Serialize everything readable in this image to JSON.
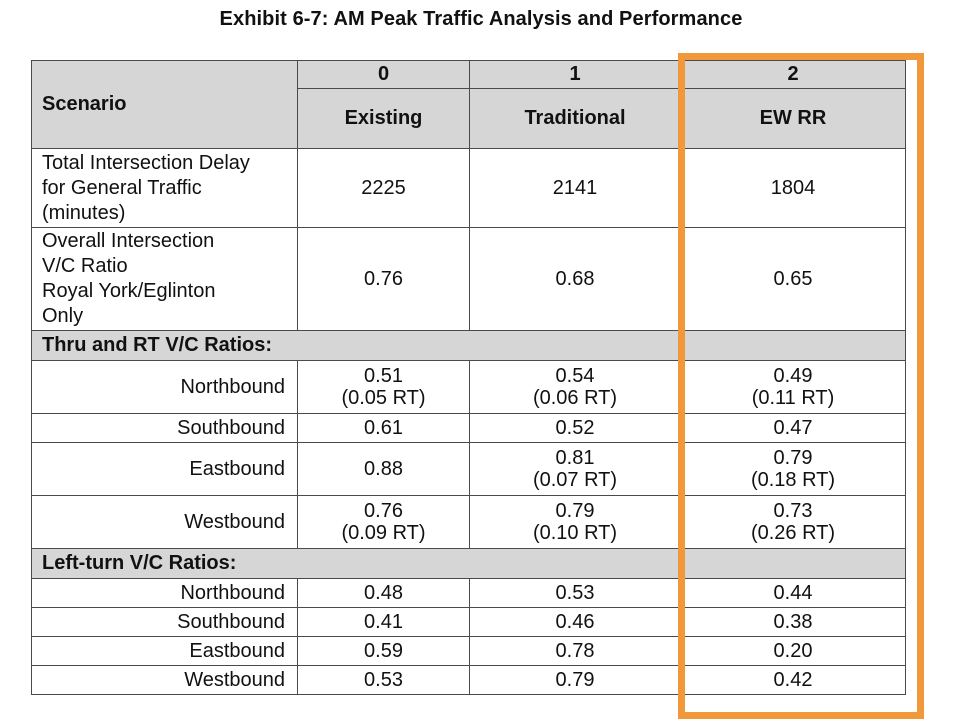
{
  "title": "Exhibit 6-7: AM Peak Traffic Analysis and Performance",
  "header": {
    "scenario_label": "Scenario",
    "columns": [
      {
        "number": "0",
        "name": "Existing"
      },
      {
        "number": "1",
        "name": "Traditional"
      },
      {
        "number": "2",
        "name": "EW RR"
      }
    ]
  },
  "rows": {
    "total_delay": {
      "label_lines": [
        "Total Intersection Delay",
        "for General Traffic",
        "(minutes)"
      ],
      "values": [
        "2225",
        "2141",
        "1804"
      ]
    },
    "overall_vc": {
      "label_lines": [
        "Overall Intersection",
        "V/C Ratio",
        "Royal York/Eglinton",
        "Only"
      ],
      "values": [
        "0.76",
        "0.68",
        "0.65"
      ]
    }
  },
  "sections": {
    "thru_rt": {
      "title": "Thru and RT V/C Ratios:",
      "rows": [
        {
          "label": "Northbound",
          "values": [
            [
              "0.51",
              "(0.05 RT)"
            ],
            [
              "0.54",
              "(0.06 RT)"
            ],
            [
              "0.49",
              "(0.11 RT)"
            ]
          ]
        },
        {
          "label": "Southbound",
          "values": [
            [
              "0.61"
            ],
            [
              "0.52"
            ],
            [
              "0.47"
            ]
          ]
        },
        {
          "label": "Eastbound",
          "values": [
            [
              "0.88"
            ],
            [
              "0.81",
              "(0.07 RT)"
            ],
            [
              "0.79",
              "(0.18 RT)"
            ]
          ]
        },
        {
          "label": "Westbound",
          "values": [
            [
              "0.76",
              "(0.09 RT)"
            ],
            [
              "0.79",
              "(0.10 RT)"
            ],
            [
              "0.73",
              "(0.26 RT)"
            ]
          ]
        }
      ]
    },
    "left_turn": {
      "title": "Left-turn V/C Ratios:",
      "rows": [
        {
          "label": "Northbound",
          "values": [
            "0.48",
            "0.53",
            "0.44"
          ]
        },
        {
          "label": "Southbound",
          "values": [
            "0.41",
            "0.46",
            "0.38"
          ]
        },
        {
          "label": "Eastbound",
          "values": [
            "0.59",
            "0.78",
            "0.20"
          ]
        },
        {
          "label": "Westbound",
          "values": [
            "0.53",
            "0.79",
            "0.42"
          ]
        }
      ]
    }
  },
  "highlight_color": "#f0983a"
}
